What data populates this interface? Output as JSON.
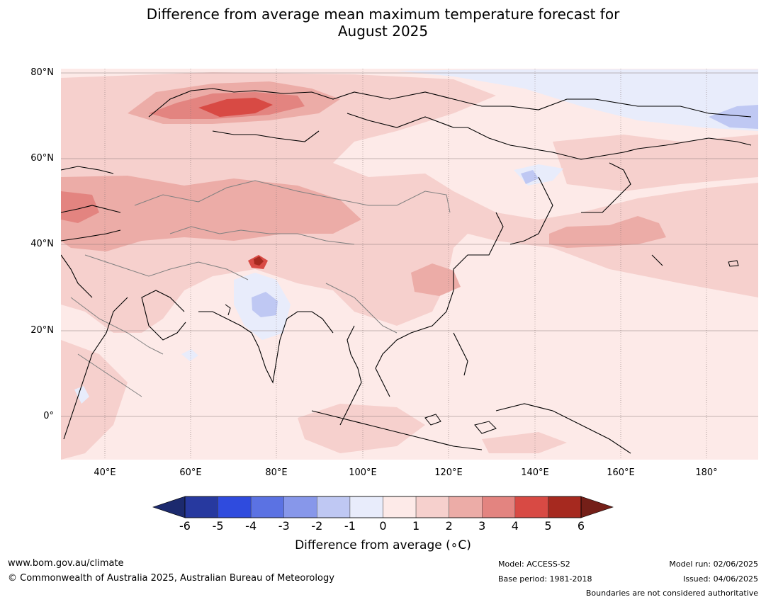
{
  "title_line1": "Difference from average mean maximum temperature forecast for",
  "title_line2": "August 2025",
  "lat_labels": [
    "80°N",
    "60°N",
    "40°N",
    "20°N",
    "0°"
  ],
  "lon_labels": [
    "40°E",
    "60°E",
    "80°E",
    "100°E",
    "120°E",
    "140°E",
    "160°E",
    "180°"
  ],
  "colorbar": {
    "ticks": [
      "-6",
      "-5",
      "-4",
      "-3",
      "-2",
      "-1",
      "0",
      "1",
      "2",
      "3",
      "4",
      "5",
      "6"
    ],
    "colors": [
      "#27399f",
      "#2f4bde",
      "#5b72e3",
      "#8797ea",
      "#bfc8f3",
      "#e8ecfb",
      "#fdeae8",
      "#f6d0cd",
      "#ecaca7",
      "#e38480",
      "#d84a44",
      "#a6291f"
    ],
    "under_color": "#1c2a6e",
    "over_color": "#741f18",
    "label": "Difference from average (∘C)"
  },
  "footer": {
    "website": "www.bom.gov.au/climate",
    "copyright": "© Commonwealth of Australia 2025, Australian Bureau of Meteorology",
    "model": "Model: ACCESS-S2",
    "base_period": "Base period: 1981-2018",
    "model_run": "Model run: 02/06/2025",
    "issued": "Issued: 04/06/2025",
    "disclaimer": "Boundaries are not considered authoritative"
  }
}
